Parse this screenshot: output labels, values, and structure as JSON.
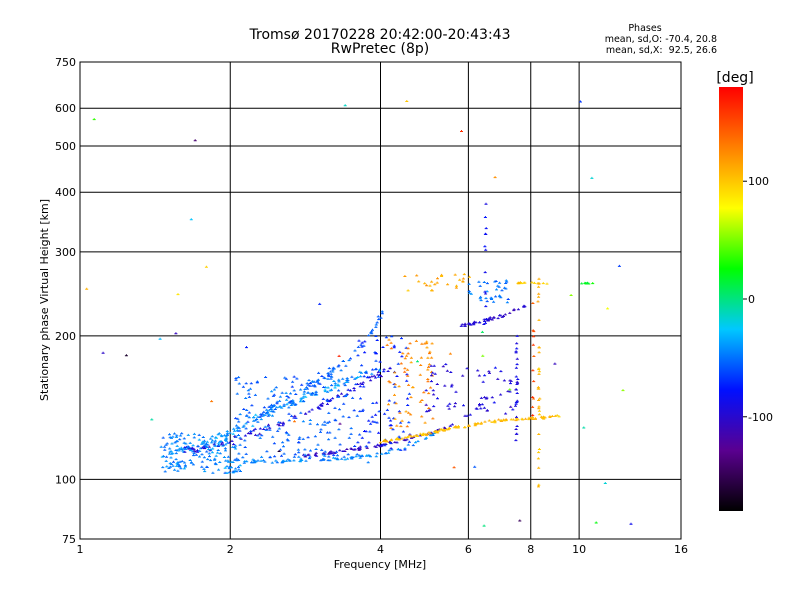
{
  "chart_data": {
    "type": "scatter",
    "title": "Tromsø 20170228 20:42:00-20:43:43",
    "subtitle": "RwPretec (8p)",
    "xlabel": "Frequency [MHz]",
    "ylabel": "Stationary phase Virtual Height [km]",
    "x_scale": "log",
    "y_scale": "log",
    "xlim": [
      1,
      16
    ],
    "ylim": [
      75,
      750
    ],
    "x_ticks": [
      1,
      2,
      4,
      6,
      8,
      10,
      16
    ],
    "x_tick_labels": [
      "1",
      "2",
      "4",
      "6",
      "8",
      "10",
      "16"
    ],
    "y_ticks": [
      75,
      100,
      200,
      300,
      400,
      500,
      600,
      750
    ],
    "y_tick_labels": [
      "75",
      "100",
      "200",
      "300",
      "400",
      "500",
      "600",
      "750"
    ],
    "grid": true,
    "stats": {
      "title": "Phases",
      "line_o": "mean, sd,O: -70.4, 20.8",
      "line_x": "mean, sd,X:  92.5, 26.6"
    },
    "colorbar": {
      "label": "[deg]",
      "ticks": [
        100,
        0,
        -100
      ],
      "tick_labels": [
        "100",
        "0",
        "-100"
      ],
      "range": [
        -180,
        180
      ],
      "colors_low_to_high": [
        "#000000",
        "#5a0090",
        "#0010ff",
        "#00c8ff",
        "#00ff00",
        "#ffff00",
        "#ff8000",
        "#ff0000"
      ]
    },
    "traces": [
      {
        "kind": "curve",
        "x": [
          1.5,
          1.7,
          1.9,
          2.1,
          2.4,
          2.8,
          3.2,
          3.6,
          4.0
        ],
        "y": [
          114,
          117,
          122,
          129,
          138,
          148,
          157,
          165,
          170
        ],
        "phase": -40,
        "n": 140,
        "spread": 0.03
      },
      {
        "kind": "curve",
        "x": [
          1.6,
          1.9,
          2.2,
          2.6,
          3.0,
          3.4,
          3.8,
          4.2
        ],
        "y": [
          115,
          118,
          124,
          133,
          142,
          152,
          162,
          172
        ],
        "phase": -95,
        "n": 100,
        "spread": 0.025
      },
      {
        "kind": "curve",
        "x": [
          2.3,
          2.6,
          3.0,
          3.4,
          3.8,
          4.1
        ],
        "y": [
          136,
          150,
          162,
          175,
          200,
          230
        ],
        "phase": -55,
        "n": 80,
        "spread": 0.035
      },
      {
        "kind": "curve",
        "x": [
          2.0,
          2.5,
          3.0,
          3.5,
          4.0,
          4.6,
          5.2
        ],
        "y": [
          109,
          109,
          110,
          111,
          113,
          118,
          126
        ],
        "phase": -45,
        "n": 90,
        "spread": 0.012
      },
      {
        "kind": "curve",
        "x": [
          2.8,
          3.2,
          3.6,
          4.0,
          4.5,
          5.0,
          5.6
        ],
        "y": [
          112,
          114,
          116,
          118,
          121,
          125,
          130
        ],
        "phase": -105,
        "n": 70,
        "spread": 0.012
      },
      {
        "kind": "cloud",
        "x": [
          1.45,
          2.1
        ],
        "y": [
          103,
          125
        ],
        "phase": -45,
        "n": 170
      },
      {
        "kind": "cloud",
        "x": [
          2.05,
          3.6
        ],
        "y": [
          110,
          165
        ],
        "phase": -55,
        "n": 190
      },
      {
        "kind": "cloud",
        "x": [
          3.6,
          4.6
        ],
        "y": [
          115,
          200
        ],
        "phase": -70,
        "n": 90
      },
      {
        "kind": "cloud",
        "x": [
          4.1,
          5.1
        ],
        "y": [
          128,
          200
        ],
        "phase": 125,
        "n": 70
      },
      {
        "kind": "cloud",
        "x": [
          4.8,
          7.5
        ],
        "y": [
          135,
          175
        ],
        "phase": -95,
        "n": 70
      },
      {
        "kind": "curve",
        "x": [
          4.0,
          4.8,
          5.5,
          6.3,
          7.0,
          7.8,
          8.6,
          9.2
        ],
        "y": [
          120,
          124,
          128,
          131,
          133,
          134,
          135,
          136
        ],
        "phase": 105,
        "n": 120,
        "spread": 0.01
      },
      {
        "kind": "curve",
        "x": [
          5.8,
          6.5,
          7.2,
          7.8
        ],
        "y": [
          210,
          215,
          222,
          232
        ],
        "phase": -100,
        "n": 50,
        "spread": 0.015
      },
      {
        "kind": "cloud",
        "x": [
          6.0,
          7.2
        ],
        "y": [
          235,
          265
        ],
        "phase": -50,
        "n": 35
      },
      {
        "kind": "cloud",
        "x": [
          4.4,
          6.3
        ],
        "y": [
          248,
          270
        ],
        "phase": 110,
        "n": 25
      },
      {
        "kind": "curve",
        "x": [
          7.5,
          8.2,
          8.9
        ],
        "y": [
          258,
          258,
          258
        ],
        "phase": 100,
        "n": 15,
        "spread": 0.006
      },
      {
        "kind": "curve",
        "x": [
          10.0,
          10.8
        ],
        "y": [
          258,
          258
        ],
        "phase": 20,
        "n": 10,
        "spread": 0.004
      },
      {
        "kind": "vline",
        "x": 8.3,
        "y": [
          95,
          280
        ],
        "phase": 105,
        "n": 30
      },
      {
        "kind": "vline",
        "x": 7.5,
        "y": [
          120,
          200
        ],
        "phase": -90,
        "n": 25
      },
      {
        "kind": "vline",
        "x": 8.1,
        "y": [
          125,
          260
        ],
        "phase": 150,
        "n": 12
      },
      {
        "kind": "vline",
        "x": 6.5,
        "y": [
          210,
          380
        ],
        "phase": -85,
        "n": 12
      },
      {
        "kind": "cloud",
        "x": [
          1.0,
          13
        ],
        "y": [
          78,
          650
        ],
        "phase": 0,
        "n": 45,
        "mixed": true
      }
    ]
  }
}
